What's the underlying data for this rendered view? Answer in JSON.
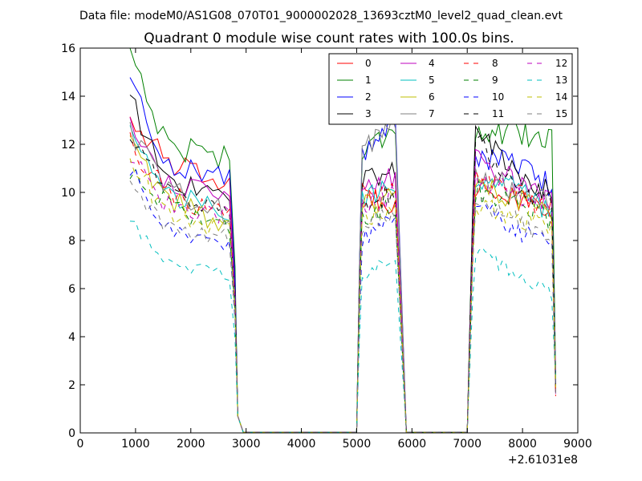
{
  "suptitle": "Data file: modeM0/AS1G08_070T01_9000002028_13693cztM0_level2_quad_clean.evt",
  "chart_data": {
    "type": "line",
    "title": "Quadrant 0 module wise count rates with 100.0s bins.",
    "xlabel": "",
    "ylabel": "",
    "xlim": [
      0,
      9000
    ],
    "ylim": [
      0,
      16
    ],
    "x_offset_label": "+2.61031e8",
    "x_ticks": [
      0,
      1000,
      2000,
      3000,
      4000,
      5000,
      6000,
      7000,
      8000,
      9000
    ],
    "y_ticks": [
      0,
      2,
      4,
      6,
      8,
      10,
      12,
      14,
      16
    ],
    "legend_position": "top-right",
    "legend_columns": 4,
    "segments": [
      {
        "x_start": 900,
        "x_end": 2750,
        "fall_end": 2900
      },
      {
        "x_start": 5050,
        "x_end": 5750,
        "fall_end": 5900
      },
      {
        "x_start": 7100,
        "x_end": 8550,
        "fall_end": 8600
      }
    ],
    "series": [
      {
        "name": "0",
        "color": "#ff0000",
        "dashed": false,
        "levels": [
          13.2,
          11.3,
          10.2,
          10.0,
          9.5,
          10.3,
          9.5,
          9.5
        ],
        "noise": 0.5
      },
      {
        "name": "1",
        "color": "#008000",
        "dashed": false,
        "levels": [
          16.0,
          12.0,
          11.5,
          11.5,
          13.0,
          12.5,
          12.3,
          12.5
        ],
        "noise": 0.6
      },
      {
        "name": "2",
        "color": "#0000ff",
        "dashed": false,
        "levels": [
          14.7,
          11.2,
          10.6,
          11.5,
          13.0,
          11.5,
          11.1,
          10.2
        ],
        "noise": 0.5
      },
      {
        "name": "3",
        "color": "#000000",
        "dashed": false,
        "levels": [
          13.9,
          10.5,
          9.8,
          10.5,
          11.0,
          12.5,
          10.5,
          10.0
        ],
        "noise": 0.5
      },
      {
        "name": "4",
        "color": "#bf00bf",
        "dashed": false,
        "levels": [
          12.9,
          10.5,
          9.5,
          10.0,
          10.8,
          11.3,
          10.3,
          9.5
        ],
        "noise": 0.5
      },
      {
        "name": "5",
        "color": "#00bfbf",
        "dashed": false,
        "levels": [
          12.5,
          10.0,
          9.0,
          9.5,
          10.5,
          10.5,
          10.3,
          9.0
        ],
        "noise": 0.5
      },
      {
        "name": "6",
        "color": "#bfbf00",
        "dashed": false,
        "levels": [
          12.0,
          9.7,
          8.5,
          9.3,
          10.0,
          10.3,
          9.7,
          8.8
        ],
        "noise": 0.5
      },
      {
        "name": "7",
        "color": "#808080",
        "dashed": false,
        "levels": [
          12.5,
          10.2,
          9.0,
          11.5,
          13.2,
          10.8,
          10.0,
          9.5
        ],
        "noise": 0.5
      },
      {
        "name": "8",
        "color": "#ff0000",
        "dashed": true,
        "levels": [
          12.0,
          10.0,
          9.0,
          9.5,
          10.0,
          10.5,
          9.8,
          9.0
        ],
        "noise": 0.5
      },
      {
        "name": "9",
        "color": "#008000",
        "dashed": true,
        "levels": [
          11.0,
          9.5,
          8.5,
          9.0,
          9.5,
          10.0,
          9.5,
          8.8
        ],
        "noise": 0.5
      },
      {
        "name": "10",
        "color": "#0000ff",
        "dashed": true,
        "levels": [
          11.0,
          8.5,
          7.8,
          8.0,
          9.0,
          9.5,
          8.3,
          7.8
        ],
        "noise": 0.4
      },
      {
        "name": "11",
        "color": "#000000",
        "dashed": true,
        "levels": [
          12.5,
          10.0,
          9.3,
          9.5,
          10.0,
          12.0,
          10.0,
          9.5
        ],
        "noise": 0.5
      },
      {
        "name": "12",
        "color": "#bf00bf",
        "dashed": true,
        "levels": [
          11.5,
          9.5,
          9.0,
          9.3,
          10.0,
          10.5,
          9.8,
          9.5
        ],
        "noise": 0.5
      },
      {
        "name": "13",
        "color": "#00bfbf",
        "dashed": true,
        "levels": [
          8.9,
          7.0,
          6.5,
          6.5,
          7.5,
          7.5,
          6.5,
          5.8
        ],
        "noise": 0.3
      },
      {
        "name": "14",
        "color": "#bfbf00",
        "dashed": true,
        "levels": [
          11.5,
          9.0,
          8.5,
          8.8,
          9.5,
          9.5,
          8.8,
          8.5
        ],
        "noise": 0.5
      },
      {
        "name": "15",
        "color": "#808080",
        "dashed": true,
        "levels": [
          10.5,
          8.5,
          8.0,
          8.5,
          9.3,
          9.5,
          8.8,
          7.8
        ],
        "noise": 0.4
      }
    ]
  }
}
